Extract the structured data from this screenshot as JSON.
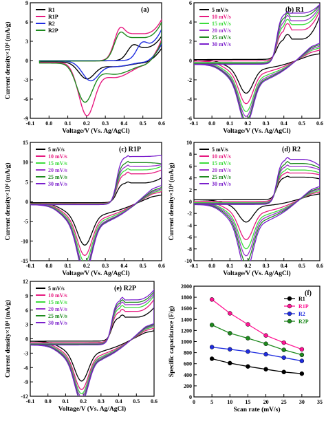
{
  "figure": {
    "colors": {
      "black": "#000000",
      "magenta": "#e6197f",
      "blue": "#1f2de0",
      "green": "#1e8a1e",
      "lightgreen": "#3cdc3c",
      "violet": "#9933cc",
      "purple": "#7a1fcc",
      "pink": "#ff1493"
    },
    "cv_legend_5": [
      "5 mV/s",
      "10 mV/s",
      "15 mV/s",
      "20 mV/s",
      "25 mV/s",
      "30 mV/s"
    ],
    "cv_legend_colors": [
      "#000000",
      "#e6197f",
      "#3cdc3c",
      "#9933cc",
      "#1e8a1e",
      "#7a1fcc"
    ]
  },
  "chart_data": [
    {
      "type": "line",
      "panel": "(a)",
      "xlabel": "Voltage/V (Vs. Ag/AgCl)",
      "ylabel": "Current density×10⁴ (mA/g)",
      "xlim": [
        -0.1,
        0.6
      ],
      "ylim": [
        -9,
        9
      ],
      "xticks": [
        "-0.1",
        "0.0",
        "0.1",
        "0.2",
        "0.3",
        "0.4",
        "0.5",
        "0.6"
      ],
      "yticks": [
        "-9",
        "-6",
        "-3",
        "0",
        "3",
        "6",
        "9"
      ],
      "legend": "top-left",
      "series": [
        {
          "name": "R1",
          "color": "#000000",
          "peak_anodic": [
            0.45,
            2.4
          ],
          "peak_cathodic": [
            0.2,
            -2.5
          ],
          "max": [
            0.6,
            4.2
          ],
          "min_start": -0.2
        },
        {
          "name": "R1P",
          "color": "#e6197f",
          "peak_anodic": [
            0.38,
            5.0
          ],
          "peak_cathodic": [
            0.2,
            -7.8
          ],
          "max": [
            0.59,
            7.2
          ],
          "min_start": -0.3
        },
        {
          "name": "R2",
          "color": "#1f2de0",
          "peak_anodic": [
            0.5,
            2.8
          ],
          "peak_cathodic": [
            0.22,
            -2.8
          ],
          "max": [
            0.6,
            5.3
          ],
          "min_start": -0.1
        },
        {
          "name": "R2P",
          "color": "#1e8a1e",
          "peak_anodic": [
            0.38,
            4.3
          ],
          "peak_cathodic": [
            0.19,
            -5.8
          ],
          "max": [
            0.6,
            6.7
          ],
          "min_start": -0.4
        }
      ]
    },
    {
      "type": "line",
      "panel": "(b) R1",
      "xlabel": "Voltage/V (Vs. Ag/AgCl)",
      "ylabel": "",
      "xlim": [
        -0.1,
        0.6
      ],
      "ylim": [
        -6,
        6
      ],
      "xticks": [
        "-0.1",
        "0.0",
        "0.1",
        "0.2",
        "0.3",
        "0.4",
        "0.5",
        "0.6"
      ],
      "yticks": [
        "-6",
        "-4",
        "-2",
        "0",
        "2",
        "4",
        "6"
      ],
      "legend": "top-left",
      "series": [
        {
          "name": "5 mV/s",
          "plateau": 2.1,
          "hump": 2.6,
          "cathodic": -2.6,
          "max": 4.5,
          "base": 0.1
        },
        {
          "name": "10 mV/s",
          "plateau": 3.2,
          "hump": 3.9,
          "cathodic": -3.3,
          "max": 5.2,
          "base": -0.05
        },
        {
          "name": "15 mV/s",
          "plateau": 3.9,
          "hump": 4.5,
          "cathodic": -3.8,
          "max": 5.6,
          "base": -0.2
        },
        {
          "name": "20 mV/s",
          "plateau": 4.4,
          "hump": 5.0,
          "cathodic": -4.1,
          "max": 5.9,
          "base": -0.3
        },
        {
          "name": "25 mV/s",
          "plateau": 4.9,
          "hump": 5.3,
          "cathodic": -4.4,
          "max": 6.1,
          "base": -0.35
        },
        {
          "name": "30 mV/s",
          "plateau": 5.3,
          "hump": 5.5,
          "cathodic": -4.6,
          "max": 6.2,
          "base": -0.4
        }
      ]
    },
    {
      "type": "line",
      "panel": "(c) R1P",
      "xlabel": "Voltage/V (Vs. Ag/AgCl)",
      "ylabel": "Current density×10⁴ (mA/g)",
      "xlim": [
        -0.1,
        0.6
      ],
      "ylim": [
        -15,
        15
      ],
      "xticks": [
        "-0.1",
        "0.0",
        "0.1",
        "0.2",
        "0.3",
        "0.4",
        "0.5",
        "0.6"
      ],
      "yticks": [
        "-15",
        "-10",
        "-5",
        "0",
        "5",
        "10",
        "15"
      ],
      "legend": "top-left",
      "series": [
        {
          "name": "5 mV/s",
          "plateau": 5.0,
          "hump": 5.3,
          "cathodic": -8.0,
          "max": 6.3,
          "base": -0.3
        },
        {
          "name": "10 mV/s",
          "plateau": 7.5,
          "hump": 8.0,
          "cathodic": -9.8,
          "max": 8.5,
          "base": -0.5
        },
        {
          "name": "15 mV/s",
          "plateau": 8.6,
          "hump": 9.0,
          "cathodic": -11.0,
          "max": 9.5,
          "base": -0.6
        },
        {
          "name": "20 mV/s",
          "plateau": 9.6,
          "hump": 10.0,
          "cathodic": -12.0,
          "max": 10.0,
          "base": -0.7
        },
        {
          "name": "25 mV/s",
          "plateau": 10.6,
          "hump": 11.0,
          "cathodic": -12.6,
          "max": 10.3,
          "base": -0.75
        },
        {
          "name": "30 mV/s",
          "plateau": 12.2,
          "hump": 12.5,
          "cathodic": -13.0,
          "max": 12.5,
          "base": -0.8
        }
      ]
    },
    {
      "type": "line",
      "panel": "(d) R2",
      "xlabel": "Voltage/V (Vs. Ag/AgCl)",
      "ylabel": "Current density×10⁴ (mA/g)",
      "xlim": [
        -0.1,
        0.6
      ],
      "ylim": [
        -10,
        10
      ],
      "xticks": [
        "-0.1",
        "0.0",
        "0.1",
        "0.2",
        "0.3",
        "0.4",
        "0.5",
        "0.6"
      ],
      "yticks": [
        "-10",
        "-8",
        "-6",
        "-4",
        "-2",
        "0",
        "2",
        "4",
        "6",
        "8",
        "10"
      ],
      "legend": "top-left",
      "series": [
        {
          "name": "5 mV/s",
          "plateau": 3.8,
          "hump": 4.0,
          "cathodic": -2.8,
          "max": 3.5,
          "base": 0.3
        },
        {
          "name": "10 mV/s",
          "plateau": 4.8,
          "hump": 5.0,
          "cathodic": -4.8,
          "max": 4.5,
          "base": 0.0
        },
        {
          "name": "15 mV/s",
          "plateau": 5.5,
          "hump": 5.8,
          "cathodic": -5.8,
          "max": 5.0,
          "base": -0.2
        },
        {
          "name": "20 mV/s",
          "plateau": 6.2,
          "hump": 6.5,
          "cathodic": -6.6,
          "max": 5.6,
          "base": -0.3
        },
        {
          "name": "25 mV/s",
          "plateau": 6.8,
          "hump": 7.2,
          "cathodic": -7.4,
          "max": 6.0,
          "base": -0.4
        },
        {
          "name": "30 mV/s",
          "plateau": 7.6,
          "hump": 8.0,
          "cathodic": -8.2,
          "max": 6.5,
          "base": -0.5
        }
      ]
    },
    {
      "type": "line",
      "panel": "(e) R2P",
      "xlabel": "Voltage/V (Vs. Ag/AgCl)",
      "ylabel": "Current density×10⁴ (mA/g)",
      "xlim": [
        -0.1,
        0.6
      ],
      "ylim": [
        -12,
        12
      ],
      "xticks": [
        "-0.1",
        "0.0",
        "0.1",
        "0.2",
        "0.3",
        "0.4",
        "0.5",
        "0.6"
      ],
      "yticks": [
        "-12",
        "-9",
        "-6",
        "-3",
        "0",
        "3",
        "6",
        "9",
        "12"
      ],
      "legend": "top-left",
      "series": [
        {
          "name": "5 mV/s",
          "plateau": 5.0,
          "hump": 5.5,
          "cathodic": -6.2,
          "max": 7.0,
          "base": -0.5
        },
        {
          "name": "10 mV/s",
          "plateau": 6.5,
          "hump": 7.0,
          "cathodic": -7.3,
          "max": 9.0,
          "base": -0.8
        },
        {
          "name": "15 mV/s",
          "plateau": 7.5,
          "hump": 8.0,
          "cathodic": -7.8,
          "max": 10.0,
          "base": -1.0
        },
        {
          "name": "20 mV/s",
          "plateau": 8.2,
          "hump": 8.8,
          "cathodic": -8.2,
          "max": 10.5,
          "base": -1.1
        },
        {
          "name": "25 mV/s",
          "plateau": 8.8,
          "hump": 9.4,
          "cathodic": -8.6,
          "max": 11.0,
          "base": -1.2
        },
        {
          "name": "30 mV/s",
          "plateau": 9.4,
          "hump": 10.0,
          "cathodic": -8.8,
          "max": 11.5,
          "base": -1.3
        }
      ]
    },
    {
      "type": "line",
      "panel": "(f)",
      "xlabel": "Scan rate (mV/s)",
      "ylabel": "Specific capacitance (F/g)",
      "xlim": [
        0,
        35
      ],
      "ylim": [
        0,
        2000
      ],
      "xticks": [
        "0",
        "5",
        "10",
        "15",
        "20",
        "25",
        "30",
        "35"
      ],
      "yticks": [
        "0",
        "200",
        "400",
        "600",
        "800",
        "1000",
        "1200",
        "1400",
        "1600",
        "1800",
        "2000"
      ],
      "legend": "top-right",
      "x": [
        5,
        10,
        15,
        20,
        25,
        30
      ],
      "series": [
        {
          "name": "R1",
          "color": "#000000",
          "values": [
            690,
            610,
            550,
            500,
            450,
            420
          ]
        },
        {
          "name": "R1P",
          "color": "#ff1493",
          "values": [
            1760,
            1510,
            1310,
            1110,
            980,
            860
          ]
        },
        {
          "name": "R2",
          "color": "#1f2de0",
          "values": [
            900,
            860,
            820,
            770,
            710,
            650
          ]
        },
        {
          "name": "R2P",
          "color": "#1e8a1e",
          "values": [
            1300,
            1150,
            1060,
            960,
            850,
            760
          ]
        }
      ]
    }
  ]
}
